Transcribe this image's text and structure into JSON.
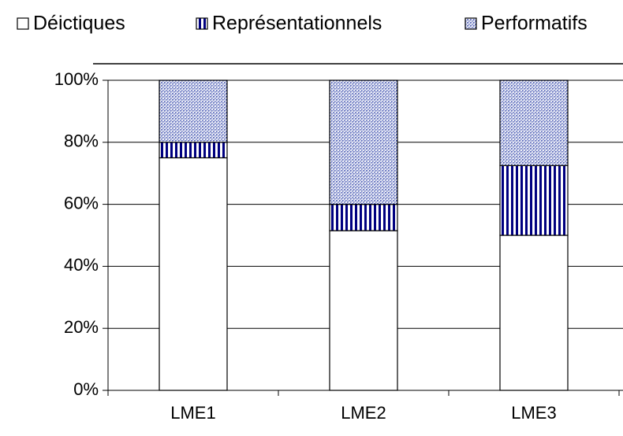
{
  "chart_data": {
    "type": "stacked_bar",
    "categories": [
      "LME1",
      "LME2",
      "LME3"
    ],
    "series": [
      {
        "name": "Déictiques",
        "color": "#ffffff",
        "pattern": "solid",
        "values": [
          75,
          51.5,
          50
        ]
      },
      {
        "name": "Représentationnels",
        "color": "#000080",
        "pattern": "vertical",
        "values": [
          5,
          8.5,
          22.5
        ]
      },
      {
        "name": "Performatifs",
        "color": "#3344aa",
        "pattern": "crosshatch",
        "values": [
          20,
          40,
          27.5
        ]
      }
    ],
    "ylim": [
      0,
      100
    ],
    "yticks": [
      {
        "value": 0,
        "label": "0%"
      },
      {
        "value": 20,
        "label": "20%"
      },
      {
        "value": 40,
        "label": "40%"
      },
      {
        "value": 60,
        "label": "60%"
      },
      {
        "value": 80,
        "label": "80%"
      },
      {
        "value": 100,
        "label": "100%"
      }
    ],
    "grid": true,
    "legend": "top"
  }
}
